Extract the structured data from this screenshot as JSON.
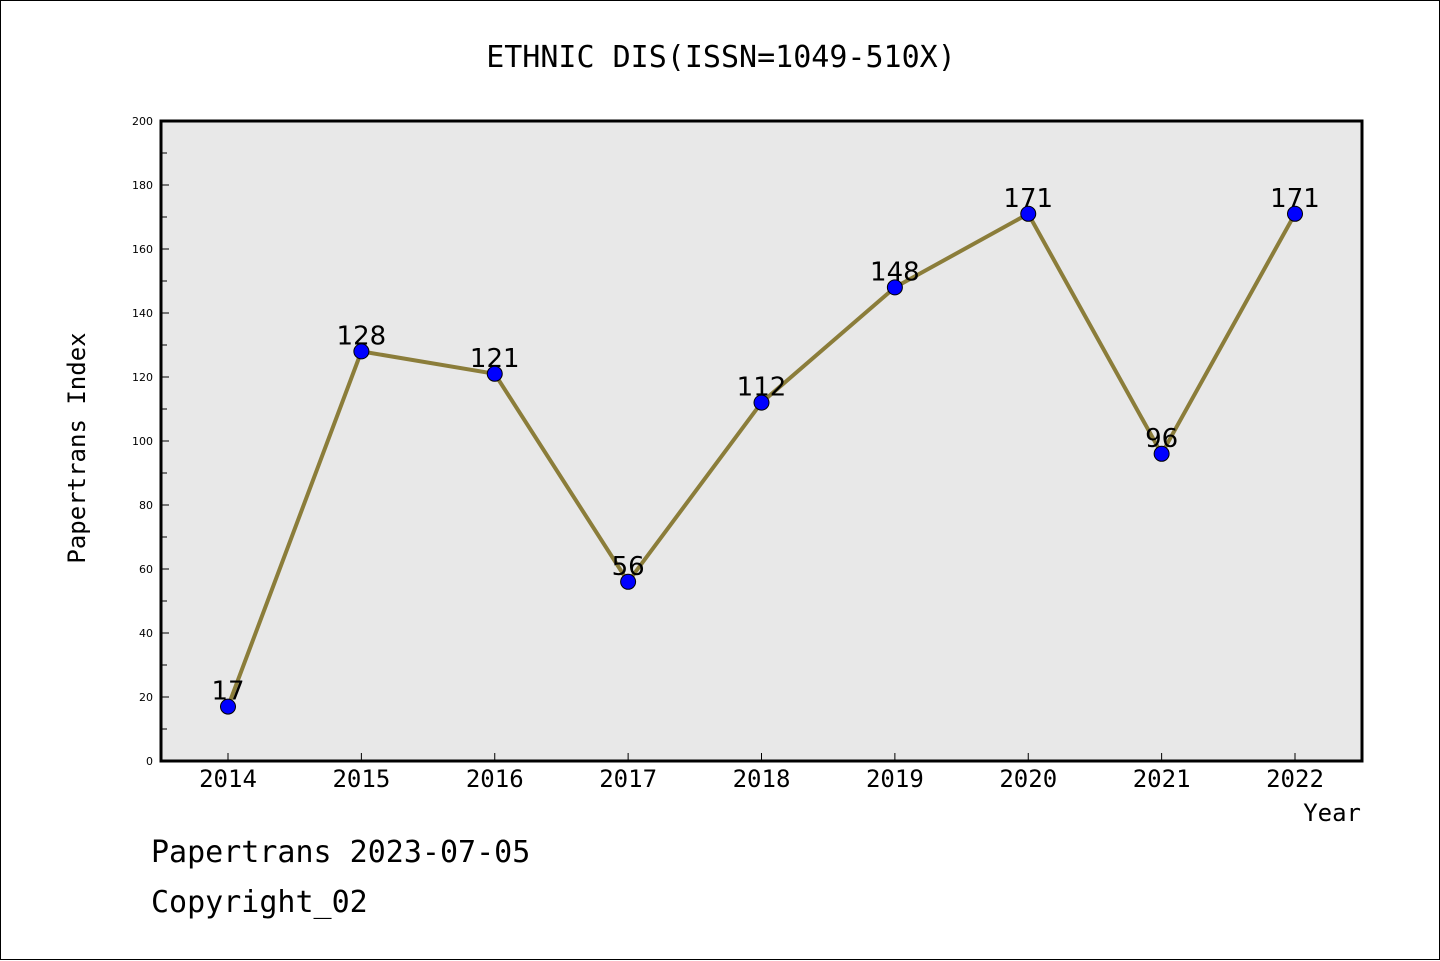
{
  "chart_data": {
    "type": "line",
    "title": "ETHNIC DIS(ISSN=1049-510X)",
    "xlabel": "Year",
    "ylabel": "Papertrans Index",
    "categories": [
      "2014",
      "2015",
      "2016",
      "2017",
      "2018",
      "2019",
      "2020",
      "2021",
      "2022"
    ],
    "series": [
      {
        "values": [
          17,
          128,
          121,
          56,
          112,
          148,
          171,
          96,
          171
        ]
      }
    ],
    "data_labels": [
      "17",
      "128",
      "121",
      "56",
      "112",
      "148",
      "171",
      "96",
      "171"
    ],
    "ylim": [
      0,
      200
    ],
    "yticks": [
      "0",
      "20",
      "40",
      "60",
      "80",
      "100",
      "120",
      "140",
      "160",
      "180",
      "200"
    ],
    "grid": false,
    "legend": "none",
    "colors": {
      "line": "#8b7d3a",
      "marker": "#0000ff",
      "plot_background": "#e8e8e8"
    }
  },
  "footer": {
    "line1": "Papertrans 2023-07-05",
    "line2": "Copyright_02"
  }
}
